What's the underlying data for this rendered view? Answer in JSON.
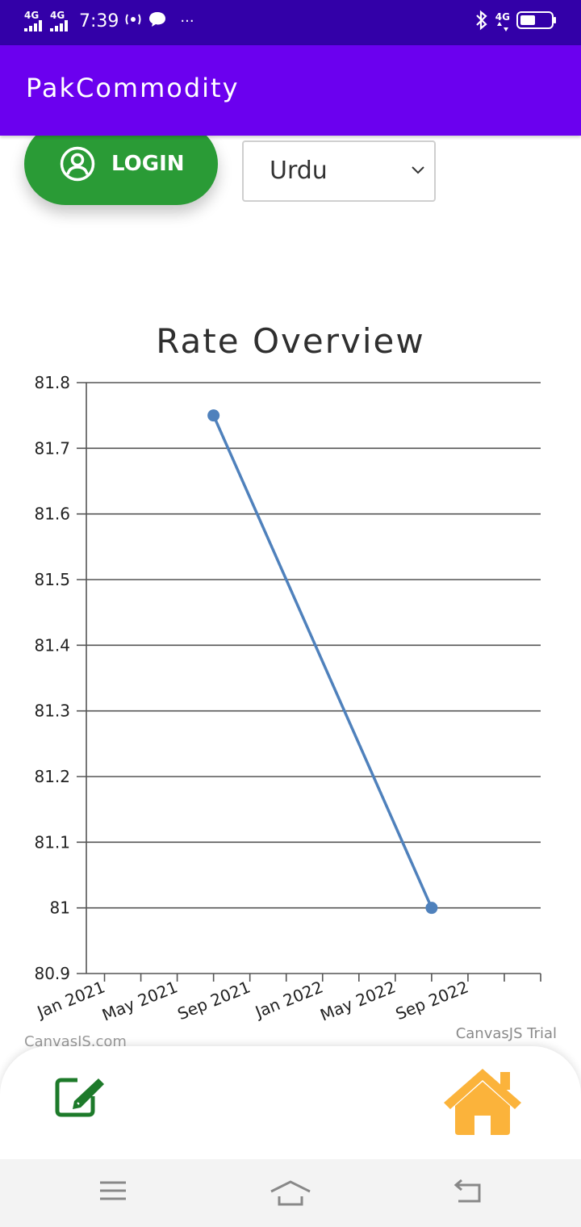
{
  "status_bar": {
    "network_1": "4G",
    "network_2": "4G",
    "time": "7:39",
    "more": "···",
    "right_network": "4G"
  },
  "app_bar": {
    "title": "PakCommodity"
  },
  "login_button": {
    "label": "LOGIN"
  },
  "language_select": {
    "selected": "Urdu"
  },
  "chart_data": {
    "type": "line",
    "title": "Rate Overview",
    "xlabel": "",
    "ylabel": "",
    "x_ticks": [
      "Jan 2021",
      "May 2021",
      "Sep 2021",
      "Jan 2022",
      "May 2022",
      "Sep 2022"
    ],
    "y_ticks": [
      "80.9",
      "81",
      "81.1",
      "81.2",
      "81.3",
      "81.4",
      "81.5",
      "81.6",
      "81.7",
      "81.8"
    ],
    "ylim": [
      80.9,
      81.8
    ],
    "xlim": [
      "2020-12",
      "2023-01"
    ],
    "grid": true,
    "series": [
      {
        "points": [
          {
            "x": "2021-07",
            "y": 81.75
          },
          {
            "x": "2022-07",
            "y": 81.0
          }
        ],
        "color": "#4f81bc"
      }
    ]
  },
  "watermarks": {
    "left": "CanvasJS.com",
    "right": "CanvasJS Trial"
  },
  "icons": {
    "account": "account-circle-icon",
    "chevron": "chevron-down-icon",
    "edit": "edit-icon",
    "home": "home-icon",
    "bluetooth": "bluetooth-icon",
    "battery": "battery-icon"
  },
  "colors": {
    "status_bar": "#3300a8",
    "app_bar": "#6b00ef",
    "login": "#2a9b36",
    "home": "#fbb33b",
    "edit": "#1d7a2a",
    "line": "#4f81bc"
  }
}
